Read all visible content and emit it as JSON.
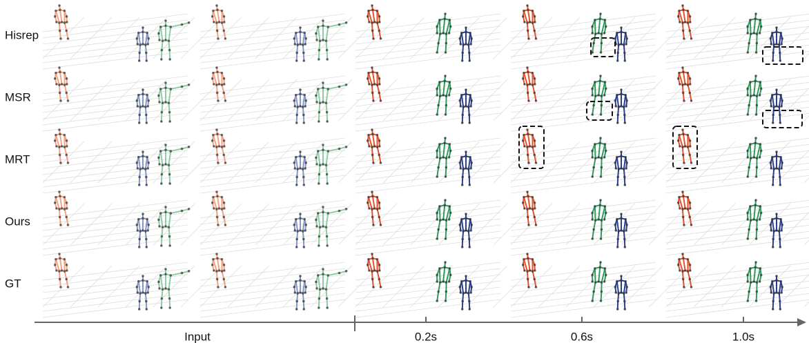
{
  "rows": [
    "Hisrep",
    "MSR",
    "MRT",
    "Ours",
    "GT"
  ],
  "timeline": {
    "labels": [
      "Input",
      "0.2s",
      "0.6s",
      "1.0s"
    ]
  }
}
